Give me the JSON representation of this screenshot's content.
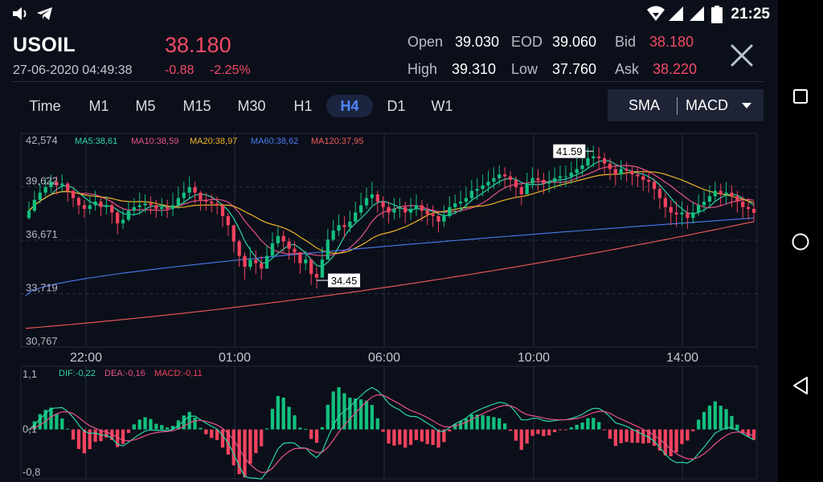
{
  "status": {
    "time": "21:25"
  },
  "header": {
    "symbol": "USOIL",
    "datetime": "27-06-2020 04:49:38",
    "price": "38.180",
    "change": "-0.88",
    "change_pct": "-2.25%",
    "quote": {
      "open_label": "Open",
      "open": "39.030",
      "eod_label": "EOD",
      "eod": "39.060",
      "bid_label": "Bid",
      "bid": "38.180",
      "high_label": "High",
      "high": "39.310",
      "low_label": "Low",
      "low": "37.760",
      "ask_label": "Ask",
      "ask": "38.220"
    }
  },
  "timeframes": [
    "Time",
    "M1",
    "M5",
    "M15",
    "M30",
    "H1",
    "H4",
    "D1",
    "W1"
  ],
  "active_timeframe": "H4",
  "indicators": {
    "main": "SMA",
    "sub": "MACD"
  },
  "colors": {
    "up": "#13c07e",
    "down": "#f2435e",
    "ma5": "#2dd4a8",
    "ma10": "#e8528a",
    "ma20": "#f0b429",
    "ma60": "#4a7cf0",
    "ma120": "#f05a5a",
    "dif": "#2dd4a8",
    "dea": "#e8528a",
    "macd": "#f2435e",
    "active_tab": "#4f87ff"
  },
  "chart_data": [
    {
      "type": "candlestick",
      "y_ticks": [
        "42,574",
        "39,622",
        "36,671",
        "33,719",
        "30,767"
      ],
      "ylim": [
        30.767,
        42.574
      ],
      "x_ticks": [
        "22:00",
        "01:00",
        "06:00",
        "10:00",
        "14:00"
      ],
      "ma_legend": [
        {
          "name": "MA5",
          "value": "38,61",
          "label": "MA5:38,61"
        },
        {
          "name": "MA10",
          "value": "38,59",
          "label": "MA10:38,59"
        },
        {
          "name": "MA20",
          "value": "38,97",
          "label": "MA20:38,97"
        },
        {
          "name": "MA60",
          "value": "38,62",
          "label": "MA60:38,62"
        },
        {
          "name": "MA120",
          "value": "37,95",
          "label": "MA120:37,95"
        }
      ],
      "annotations": [
        {
          "label": "41.59",
          "value": 41.59
        },
        {
          "label": "34.45",
          "value": 34.45
        }
      ],
      "closes": [
        38.3,
        38.9,
        39.3,
        39.6,
        39.9,
        39.7,
        39.8,
        39.4,
        39.0,
        38.6,
        38.4,
        38.6,
        38.8,
        38.5,
        38.6,
        38.2,
        37.6,
        37.8,
        38.3,
        38.5,
        38.6,
        38.7,
        38.6,
        38.4,
        38.5,
        38.4,
        38.6,
        39.0,
        39.3,
        39.6,
        39.3,
        38.9,
        38.8,
        38.7,
        38.6,
        38.0,
        37.5,
        36.6,
        35.8,
        35.2,
        35.6,
        35.4,
        35.1,
        35.8,
        36.5,
        36.9,
        36.6,
        36.2,
        36.0,
        35.4,
        35.6,
        34.8,
        34.6,
        35.6,
        36.7,
        37.2,
        37.5,
        37.4,
        37.7,
        38.2,
        38.6,
        39.0,
        39.2,
        38.8,
        38.5,
        38.2,
        38.4,
        38.5,
        38.2,
        38.4,
        38.6,
        38.3,
        38.1,
        38.0,
        37.7,
        38.0,
        38.5,
        38.7,
        38.8,
        39.0,
        39.4,
        39.5,
        39.7,
        39.9,
        40.1,
        40.3,
        40.2,
        40.0,
        39.6,
        39.2,
        39.8,
        40.1,
        40.0,
        39.8,
        39.9,
        40.1,
        40.2,
        40.2,
        40.4,
        40.6,
        40.8,
        41.2,
        41.3,
        41.2,
        40.9,
        40.6,
        40.3,
        40.6,
        40.5,
        40.3,
        40.2,
        40.0,
        39.9,
        39.5,
        39.0,
        38.5,
        38.2,
        38.1,
        38.2,
        37.9,
        38.2,
        38.6,
        38.8,
        39.1,
        39.4,
        39.2,
        39.3,
        39.1,
        38.8,
        38.5,
        38.4,
        38.18
      ],
      "highs": [
        38.8,
        39.4,
        39.8,
        40.1,
        40.3,
        40.2,
        40.3,
        39.9,
        39.5,
        39.1,
        38.9,
        39.1,
        39.4,
        39.0,
        39.1,
        38.8,
        38.3,
        38.4,
        38.8,
        39.0,
        39.3,
        39.2,
        39.1,
        38.9,
        39.0,
        38.9,
        39.3,
        39.6,
        39.9,
        40.2,
        39.9,
        39.4,
        39.3,
        39.2,
        39.1,
        38.7,
        38.2,
        37.3,
        36.7,
        36.0,
        36.3,
        36.1,
        35.8,
        36.4,
        37.1,
        37.4,
        37.2,
        36.8,
        36.6,
        36.0,
        36.1,
        35.5,
        35.2,
        36.3,
        37.3,
        37.8,
        38.1,
        38.0,
        38.3,
        38.8,
        39.3,
        39.6,
        39.9,
        39.4,
        39.1,
        38.8,
        39.0,
        39.0,
        38.8,
        39.0,
        39.2,
        38.9,
        38.7,
        38.6,
        38.3,
        38.6,
        39.1,
        39.2,
        39.4,
        39.6,
        40.0,
        40.1,
        40.3,
        40.5,
        40.7,
        40.8,
        40.7,
        40.5,
        40.2,
        39.8,
        40.4,
        40.7,
        40.6,
        40.4,
        40.5,
        40.7,
        40.8,
        40.8,
        41.0,
        41.2,
        41.3,
        41.8,
        41.9,
        41.8,
        41.5,
        41.2,
        40.9,
        41.1,
        41.0,
        40.8,
        40.7,
        40.6,
        40.5,
        40.1,
        39.7,
        39.3,
        38.9,
        38.8,
        38.8,
        38.6,
        38.8,
        39.2,
        39.4,
        39.7,
        39.9,
        39.8,
        39.9,
        39.7,
        39.4,
        39.1,
        39.0,
        38.8
      ],
      "lows": [
        37.8,
        38.2,
        38.7,
        39.1,
        39.3,
        39.2,
        39.3,
        38.8,
        38.5,
        38.1,
        37.9,
        38.1,
        38.3,
        38.0,
        38.1,
        37.6,
        37.0,
        37.3,
        37.7,
        38.0,
        38.1,
        38.2,
        38.1,
        37.9,
        38.0,
        37.9,
        38.0,
        38.4,
        38.7,
        39.0,
        38.7,
        38.3,
        38.3,
        38.2,
        38.1,
        37.4,
        36.9,
        36.0,
        35.2,
        34.5,
        35.0,
        34.8,
        34.5,
        35.2,
        35.9,
        36.3,
        36.0,
        35.6,
        35.4,
        34.8,
        35.0,
        34.2,
        34.0,
        34.9,
        36.0,
        36.6,
        36.9,
        36.8,
        37.1,
        37.6,
        38.0,
        38.4,
        38.6,
        38.2,
        37.9,
        37.6,
        37.8,
        37.9,
        37.6,
        37.8,
        38.0,
        37.7,
        37.5,
        37.4,
        37.1,
        37.4,
        37.9,
        38.1,
        38.2,
        38.4,
        38.8,
        38.9,
        39.1,
        39.3,
        39.5,
        39.7,
        39.6,
        39.4,
        39.0,
        38.6,
        39.2,
        39.5,
        39.4,
        39.2,
        39.3,
        39.5,
        39.6,
        39.6,
        39.8,
        40.0,
        40.2,
        40.6,
        40.7,
        40.6,
        40.3,
        40.0,
        39.7,
        40.0,
        39.9,
        39.7,
        39.6,
        39.4,
        39.3,
        38.9,
        38.4,
        37.9,
        37.5,
        37.4,
        37.5,
        37.3,
        37.6,
        38.0,
        38.2,
        38.5,
        38.8,
        38.6,
        38.7,
        38.5,
        38.2,
        37.9,
        37.8,
        37.7
      ]
    },
    {
      "type": "bar",
      "y_ticks": [
        "1,1",
        "0,1",
        "-0,8"
      ],
      "ylim": [
        -0.8,
        1.1
      ],
      "legend": [
        {
          "name": "DIF",
          "value": "-0,22",
          "label": "DIF:-0,22"
        },
        {
          "name": "DEA",
          "value": "-0,16",
          "label": "DEA:-0,16"
        },
        {
          "name": "MACD",
          "value": "-0,11",
          "label": "MACD:-0,11"
        }
      ]
    }
  ]
}
